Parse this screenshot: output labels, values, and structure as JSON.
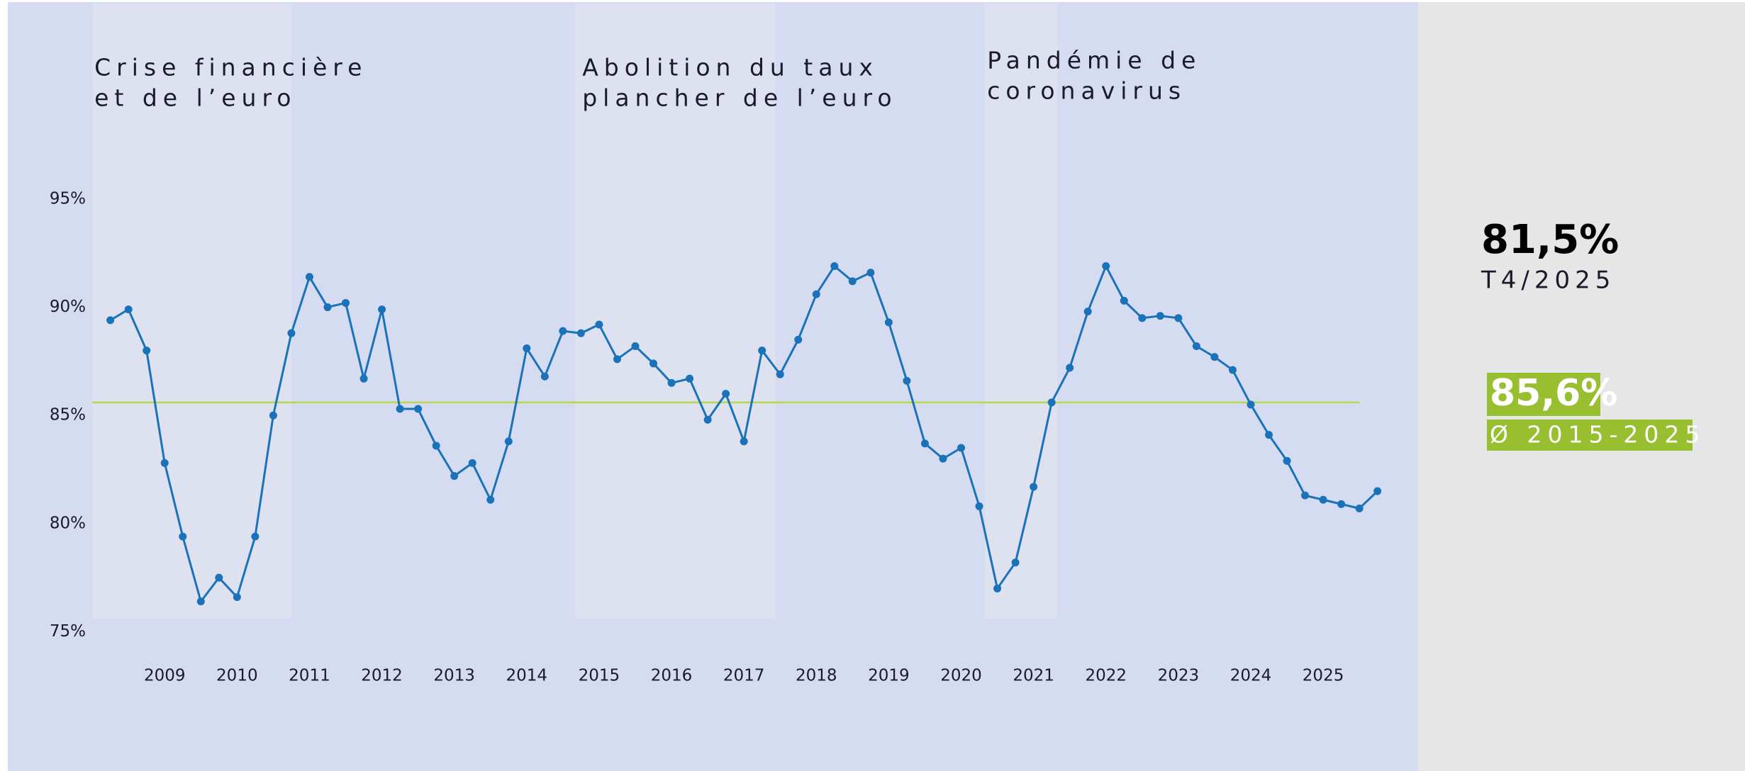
{
  "chart_data": {
    "type": "line",
    "x": [
      2008.25,
      2008.5,
      2008.75,
      2009,
      2009.25,
      2009.5,
      2009.75,
      2010,
      2010.25,
      2010.5,
      2010.75,
      2011,
      2011.25,
      2011.5,
      2011.75,
      2012,
      2012.25,
      2012.5,
      2012.75,
      2013,
      2013.25,
      2013.5,
      2013.75,
      2014,
      2014.25,
      2014.5,
      2014.75,
      2015,
      2015.25,
      2015.5,
      2015.75,
      2016,
      2016.25,
      2016.5,
      2016.75,
      2017,
      2017.25,
      2017.5,
      2017.75,
      2018,
      2018.25,
      2018.5,
      2018.75,
      2019,
      2019.25,
      2019.5,
      2019.75,
      2020,
      2020.25,
      2020.5,
      2020.75,
      2021,
      2021.25,
      2021.5,
      2021.75,
      2022,
      2022.25,
      2022.5,
      2022.75,
      2023,
      2023.25,
      2023.5,
      2023.75,
      2024,
      2024.25,
      2024.5,
      2024.75,
      2025,
      2025.25,
      2025.5,
      2025.75
    ],
    "series": [
      {
        "color": "#1a72b8",
        "values": [
          89.4,
          89.9,
          88.0,
          82.8,
          79.4,
          76.4,
          77.5,
          76.6,
          79.4,
          85.0,
          88.8,
          91.4,
          90.0,
          90.2,
          86.7,
          89.9,
          85.3,
          85.3,
          83.6,
          82.2,
          82.8,
          81.1,
          83.8,
          88.1,
          86.8,
          88.9,
          88.8,
          89.2,
          87.6,
          88.2,
          87.4,
          86.5,
          86.7,
          84.8,
          86.0,
          83.8,
          88.0,
          86.9,
          88.5,
          90.6,
          91.9,
          91.2,
          91.6,
          89.3,
          86.6,
          83.7,
          83.0,
          83.5,
          80.8,
          77.0,
          78.2,
          81.7,
          85.6,
          87.2,
          89.8,
          91.9,
          90.3,
          89.5,
          89.6,
          89.5,
          88.2,
          87.7,
          87.1,
          85.5,
          84.1,
          82.9,
          81.3,
          81.1,
          80.9,
          80.7,
          81.5
        ]
      }
    ],
    "xlim": [
      2008,
      2026
    ],
    "xticks": [
      2009,
      2010,
      2011,
      2012,
      2013,
      2014,
      2015,
      2016,
      2017,
      2018,
      2019,
      2020,
      2021,
      2022,
      2023,
      2024,
      2025
    ],
    "ylim": [
      75,
      95
    ],
    "yticks": [
      {
        "value": 75,
        "label": "75%"
      },
      {
        "value": 80,
        "label": "80%"
      },
      {
        "value": 85,
        "label": "85%"
      },
      {
        "value": 90,
        "label": "90%"
      },
      {
        "value": 95,
        "label": "95%"
      }
    ],
    "periods": [
      {
        "start": 2008,
        "end": 2010.75,
        "label": [
          "Crise financière",
          "et de l’euro"
        ]
      },
      {
        "start": 2014.67,
        "end": 2017.44,
        "label": [
          "Abolition du taux",
          "plancher de l’euro"
        ]
      },
      {
        "start": 2020.33,
        "end": 2021.33,
        "label": [
          "Pandémie de",
          "coronavirus"
        ]
      }
    ],
    "latest": {
      "label": "81,5%",
      "period": "T4/2025"
    },
    "average": {
      "value": 85.6,
      "label": "85,6%",
      "period": "Ø 2015-2025",
      "color": "#b6d84a",
      "box_color": "#97bf2f"
    }
  }
}
